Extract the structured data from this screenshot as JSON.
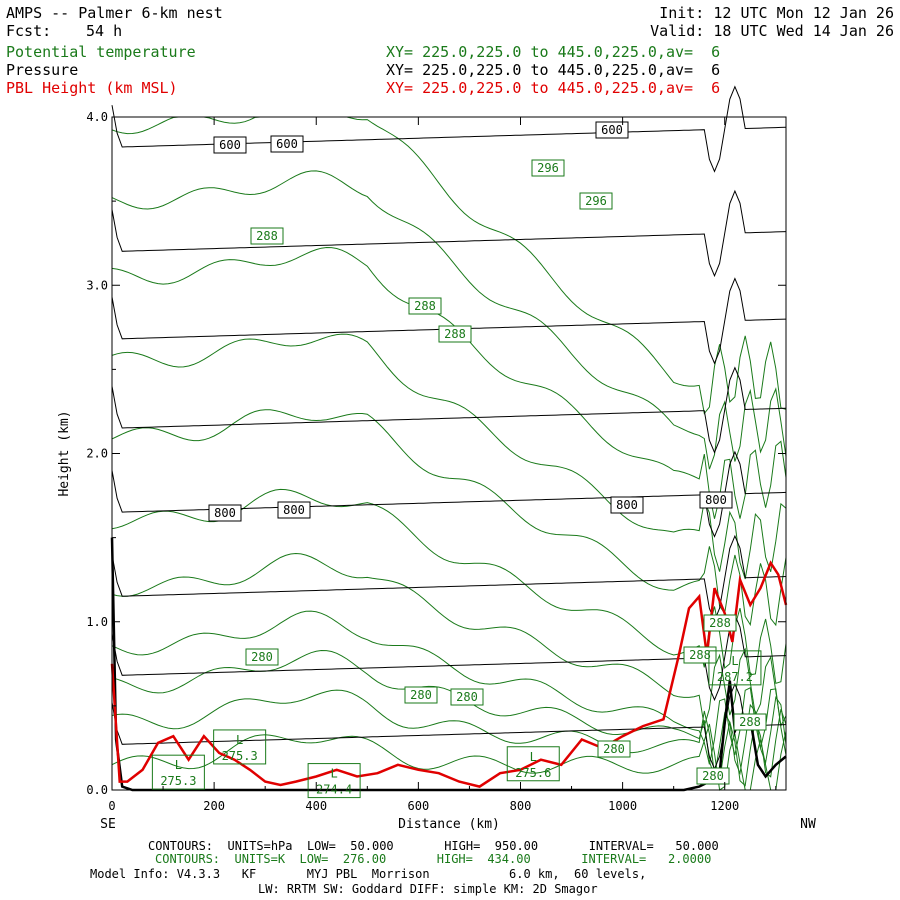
{
  "header": {
    "title": "AMPS -- Palmer 6-km nest",
    "fcst_label": "Fcst:",
    "fcst_value": "54 h",
    "init": "Init: 12 UTC Mon 12 Jan 26",
    "valid": "Valid: 18 UTC Wed 14 Jan 26",
    "field1": "Potential temperature",
    "field2": "Pressure",
    "field3": "PBL Height (km MSL)",
    "xy1": "XY= 225.0,225.0 to 445.0,225.0,av=  6",
    "xy2": "XY= 225.0,225.0 to 445.0,225.0,av=  6",
    "xy3": "XY= 225.0,225.0 to 445.0,225.0,av=  6"
  },
  "colors": {
    "theta": "#1a7a1a",
    "pressure": "#000000",
    "pbl": "#e00000",
    "terrain": "#000000"
  },
  "footer": {
    "contours_p": "CONTOURS:  UNITS=hPa  LOW=  50.000       HIGH=  950.00       INTERVAL=   50.000",
    "contours_t": "CONTOURS:  UNITS=K  LOW=  276.00       HIGH=  434.00       INTERVAL=   2.0000",
    "model1": "Model Info: V4.3.3   KF       MYJ PBL  Morrison           6.0 km,  60 levels,",
    "model2": "LW: RRTM SW: Goddard DIFF: simple KM: 2D Smagor"
  },
  "chart_data": {
    "type": "line",
    "xlabel": "Distance (km)",
    "ylabel": "Height (km)",
    "xlim": [
      0,
      1320
    ],
    "ylim": [
      0,
      4.0
    ],
    "x_ticks": [
      "0",
      "200",
      "400",
      "600",
      "800",
      "1000",
      "1200"
    ],
    "y_ticks": [
      "0.0",
      "1.0",
      "2.0",
      "3.0",
      "4.0"
    ],
    "x_end_labels": {
      "left": "SE",
      "right": "NW"
    },
    "pressure_labels": [
      "600",
      "600",
      "600",
      "800",
      "800",
      "800",
      "800"
    ],
    "theta_labels": [
      "296",
      "296",
      "288",
      "288",
      "288",
      "280",
      "280",
      "280",
      "280",
      "288",
      "280",
      "288",
      "288"
    ],
    "lows": [
      {
        "letter": "L",
        "value": "275.3",
        "x": 130,
        "y": 0.1
      },
      {
        "letter": "L",
        "value": "275.3",
        "x": 250,
        "y": 0.25
      },
      {
        "letter": "L",
        "value": "274.4",
        "x": 435,
        "y": 0.05
      },
      {
        "letter": "L",
        "value": "275.6",
        "x": 825,
        "y": 0.15
      },
      {
        "letter": "L",
        "value": "287.2",
        "x": 1220,
        "y": 0.72
      }
    ],
    "pbl_height": {
      "name": "PBL Height (km MSL)",
      "x": [
        0,
        15,
        30,
        60,
        90,
        120,
        150,
        180,
        210,
        240,
        270,
        300,
        330,
        360,
        400,
        440,
        480,
        520,
        560,
        600,
        640,
        680,
        720,
        760,
        800,
        840,
        880,
        920,
        960,
        1000,
        1040,
        1080,
        1110,
        1130,
        1150,
        1165,
        1180,
        1200,
        1215,
        1230,
        1250,
        1270,
        1290,
        1305,
        1320
      ],
      "y": [
        0.75,
        0.05,
        0.05,
        0.12,
        0.28,
        0.32,
        0.18,
        0.32,
        0.22,
        0.18,
        0.12,
        0.05,
        0.03,
        0.05,
        0.08,
        0.12,
        0.08,
        0.1,
        0.15,
        0.12,
        0.1,
        0.05,
        0.02,
        0.1,
        0.12,
        0.18,
        0.15,
        0.3,
        0.25,
        0.32,
        0.38,
        0.42,
        0.8,
        1.08,
        1.15,
        0.8,
        1.2,
        1.05,
        0.88,
        1.25,
        1.1,
        1.2,
        1.35,
        1.28,
        1.1
      ]
    },
    "terrain": {
      "x": [
        0,
        8,
        20,
        40,
        60,
        80,
        1080,
        1120,
        1150,
        1170,
        1190,
        1200,
        1210,
        1220,
        1235,
        1250,
        1265,
        1280,
        1300,
        1320
      ],
      "y": [
        1.5,
        0.3,
        0.02,
        0.0,
        0.0,
        0.0,
        0.0,
        0.0,
        0.02,
        0.05,
        0.1,
        0.4,
        0.65,
        0.35,
        0.45,
        0.42,
        0.15,
        0.08,
        0.15,
        0.2
      ]
    },
    "pressure_lines_km": [
      3.82,
      3.2,
      2.68,
      2.15,
      1.65,
      1.15,
      0.68,
      0.27
    ],
    "theta_lines_km": [
      0.15,
      0.4,
      0.62,
      0.85,
      1.2,
      1.6,
      2.1,
      2.55,
      3.05,
      3.5,
      3.95
    ]
  }
}
